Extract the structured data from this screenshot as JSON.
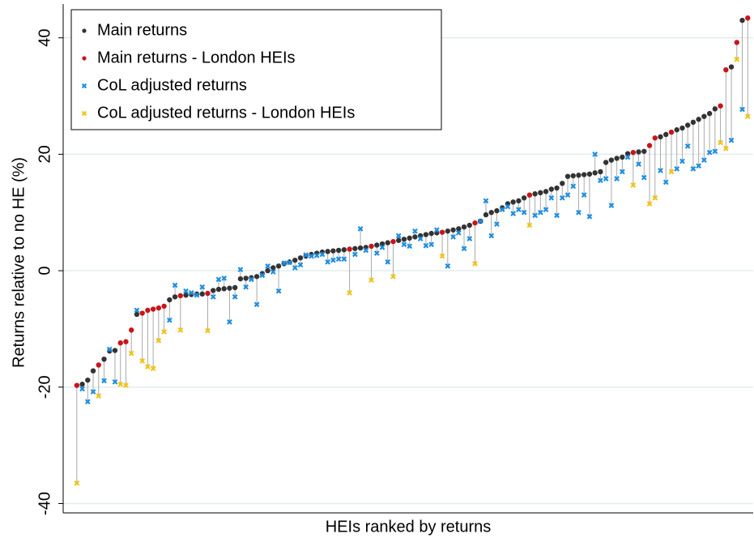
{
  "chart_data": {
    "type": "scatter",
    "y_label": "Returns relative to no HE (%)",
    "x_label": "HEIs ranked by returns",
    "xlim": [
      -1.5,
      125
    ],
    "ylim": [
      -41.6,
      45.8
    ],
    "yticks": [
      -40,
      -20,
      0,
      20,
      40
    ],
    "grid": true,
    "legend": "top-left",
    "series": [
      {
        "name": "Main returns",
        "color": "#333333",
        "marker": "circle",
        "x": [
          2,
          3,
          4,
          6,
          7,
          8,
          12,
          18,
          19,
          21,
          22,
          23,
          24,
          26,
          27,
          28,
          29,
          30,
          31,
          32,
          33,
          34,
          35,
          36,
          37,
          38,
          39,
          40,
          41,
          42,
          43,
          44,
          45,
          46,
          47,
          48,
          49,
          50,
          52,
          53,
          54,
          56,
          57,
          58,
          60,
          61,
          62,
          63,
          64,
          65,
          66,
          67,
          69,
          70,
          71,
          72,
          73,
          75,
          76,
          77,
          78,
          79,
          80,
          81,
          82,
          83,
          85,
          86,
          87,
          88,
          89,
          90,
          91,
          92,
          93,
          94,
          95,
          96,
          97,
          98,
          99,
          100,
          101,
          102,
          104,
          105,
          108,
          109,
          111,
          112,
          113,
          114,
          115,
          116,
          117,
          118,
          121,
          123
        ],
        "values": [
          -19.5,
          -18.8,
          -17.2,
          -15.2,
          -13.8,
          -13.7,
          -7.5,
          -5.0,
          -4.5,
          -4.2,
          -4.1,
          -4.0,
          -4.0,
          -3.4,
          -3.2,
          -3.1,
          -3.0,
          -2.9,
          -1.4,
          -1.3,
          -1.2,
          -1.0,
          -0.5,
          0.0,
          0.5,
          0.8,
          1.2,
          1.5,
          1.8,
          2.2,
          2.5,
          2.8,
          3.0,
          3.2,
          3.3,
          3.4,
          3.5,
          3.6,
          3.8,
          3.9,
          4.0,
          4.4,
          4.6,
          4.8,
          5.2,
          5.4,
          5.6,
          5.8,
          6.0,
          6.2,
          6.4,
          6.5,
          6.8,
          7.0,
          7.2,
          7.5,
          7.8,
          8.5,
          9.6,
          10.0,
          10.3,
          10.8,
          11.5,
          11.8,
          12.0,
          12.5,
          13.2,
          13.4,
          13.6,
          14.0,
          14.2,
          15.0,
          16.2,
          16.3,
          16.4,
          16.5,
          16.6,
          16.8,
          17.0,
          18.6,
          19.0,
          19.3,
          19.5,
          20.1,
          20.4,
          20.5,
          23.0,
          23.4,
          24.2,
          24.5,
          25.0,
          25.5,
          26.0,
          26.5,
          27.0,
          27.8,
          35.0,
          43.0
        ]
      },
      {
        "name": "Main returns - London HEIs",
        "color": "#c8151b",
        "marker": "circle",
        "x": [
          1,
          5,
          9,
          10,
          11,
          13,
          14,
          15,
          16,
          17,
          20,
          25,
          51,
          55,
          59,
          68,
          74,
          84,
          103,
          106,
          107,
          110,
          119,
          120,
          122,
          124
        ],
        "values": [
          -19.7,
          -16.2,
          -12.4,
          -12.2,
          -10.2,
          -7.3,
          -6.8,
          -6.6,
          -6.4,
          -6.1,
          -4.3,
          -3.9,
          3.7,
          4.2,
          5.0,
          6.6,
          8.2,
          13.0,
          20.3,
          21.5,
          22.8,
          23.8,
          28.3,
          34.5,
          39.2,
          43.4
        ]
      },
      {
        "name": "CoL adjusted returns",
        "color": "#1f8ee0",
        "marker": "x",
        "x": [
          2,
          3,
          4,
          6,
          7,
          8,
          12,
          18,
          19,
          21,
          22,
          23,
          24,
          26,
          27,
          28,
          29,
          30,
          31,
          32,
          33,
          34,
          35,
          36,
          37,
          38,
          39,
          40,
          41,
          42,
          43,
          44,
          45,
          46,
          47,
          48,
          49,
          50,
          52,
          53,
          54,
          56,
          57,
          58,
          60,
          61,
          62,
          63,
          64,
          65,
          66,
          67,
          69,
          70,
          71,
          72,
          73,
          75,
          76,
          77,
          78,
          79,
          80,
          81,
          82,
          83,
          85,
          86,
          87,
          88,
          89,
          90,
          91,
          92,
          93,
          94,
          95,
          96,
          97,
          98,
          99,
          100,
          101,
          102,
          104,
          105,
          108,
          109,
          111,
          112,
          113,
          114,
          115,
          116,
          117,
          118,
          121,
          123
        ],
        "values": [
          -20.3,
          -22.5,
          -20.8,
          -18.9,
          -13.5,
          -19.1,
          -6.8,
          -8.5,
          -2.5,
          -3.5,
          -3.8,
          -4.2,
          -2.8,
          -4.5,
          -1.5,
          -1.3,
          -8.8,
          -4.5,
          0.2,
          -2.8,
          -1.5,
          -5.8,
          -0.8,
          0.8,
          -0.2,
          -3.5,
          1.3,
          1.4,
          0.5,
          1.0,
          2.7,
          2.5,
          2.6,
          2.8,
          1.5,
          1.8,
          2.0,
          2.0,
          2.8,
          7.2,
          3.5,
          3.0,
          4.0,
          1.5,
          6.0,
          4.5,
          4.2,
          6.8,
          5.5,
          4.3,
          4.5,
          7.0,
          0.8,
          5.8,
          6.5,
          3.8,
          5.5,
          8.5,
          12.0,
          6.0,
          8.0,
          10.5,
          11.0,
          9.8,
          10.5,
          10.0,
          9.5,
          10.0,
          10.5,
          12.5,
          9.5,
          12.5,
          13.0,
          14.5,
          10.0,
          13.0,
          9.3,
          20.0,
          15.5,
          15.8,
          11.2,
          15.8,
          17.0,
          19.5,
          18.3,
          16.0,
          17.2,
          15.2,
          17.5,
          18.8,
          21.4,
          17.5,
          18.0,
          19.0,
          20.3,
          20.5,
          22.4,
          27.7
        ]
      },
      {
        "name": "CoL adjusted returns - London HEIs",
        "color": "#f0c419",
        "marker": "x",
        "x": [
          1,
          5,
          9,
          10,
          11,
          13,
          14,
          15,
          16,
          17,
          20,
          25,
          51,
          55,
          59,
          68,
          74,
          84,
          103,
          106,
          107,
          110,
          119,
          120,
          122,
          124
        ],
        "values": [
          -36.5,
          -21.5,
          -19.5,
          -19.7,
          -14.2,
          -15.5,
          -16.5,
          -16.8,
          -12.0,
          -10.5,
          -10.2,
          -10.3,
          -3.8,
          -1.6,
          -1.0,
          2.5,
          1.2,
          7.8,
          14.7,
          11.5,
          12.5,
          17.0,
          22.0,
          21.0,
          36.3,
          26.5
        ]
      }
    ]
  }
}
